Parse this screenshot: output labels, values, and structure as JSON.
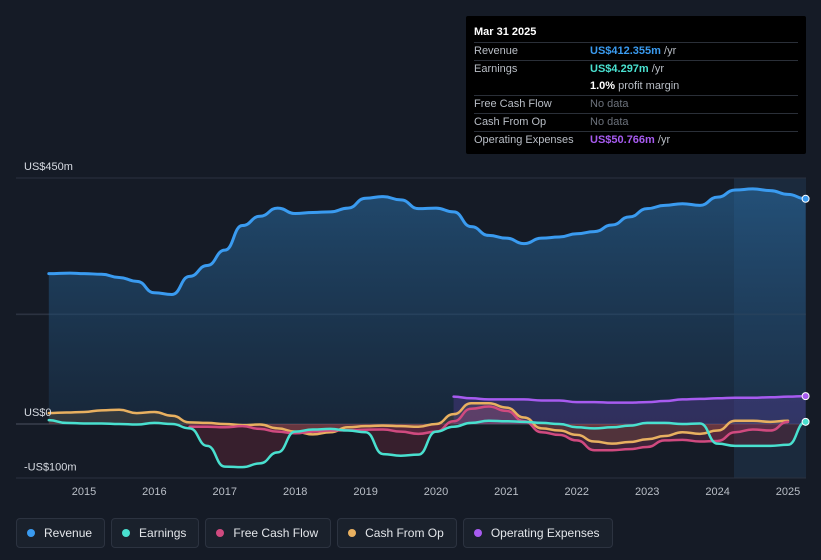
{
  "tooltip": {
    "date": "Mar 31 2025",
    "revenue_label": "Revenue",
    "revenue_value": "US$412.355m",
    "revenue_unit": "/yr",
    "earnings_label": "Earnings",
    "earnings_value": "US$4.297m",
    "earnings_unit": "/yr",
    "margin_value": "1.0%",
    "margin_label": "profit margin",
    "fcf_label": "Free Cash Flow",
    "fcf_value": "No data",
    "cfo_label": "Cash From Op",
    "cfo_value": "No data",
    "opex_label": "Operating Expenses",
    "opex_value": "US$50.766m",
    "opex_unit": "/yr"
  },
  "legend": [
    {
      "name": "Revenue",
      "color": "#3a9bf0"
    },
    {
      "name": "Earnings",
      "color": "#49e0cf"
    },
    {
      "name": "Free Cash Flow",
      "color": "#d04a7f"
    },
    {
      "name": "Cash From Op",
      "color": "#e8b060"
    },
    {
      "name": "Operating Expenses",
      "color": "#a75bf0"
    }
  ],
  "chart_data": {
    "type": "line",
    "title": "",
    "xlabel": "",
    "ylabel": "",
    "y_axis_labels": [
      "US$450m",
      "US$0",
      "-US$100m"
    ],
    "ylim": [
      -100,
      450
    ],
    "xlim": [
      2014.2,
      2025.25
    ],
    "x_ticks": [
      "2015",
      "2016",
      "2017",
      "2018",
      "2019",
      "2020",
      "2021",
      "2022",
      "2023",
      "2024",
      "2025"
    ],
    "series": [
      {
        "name": "Revenue",
        "color": "#3a9bf0",
        "x": [
          2014.5,
          2014.8,
          2015.0,
          2015.25,
          2015.5,
          2015.75,
          2016.0,
          2016.25,
          2016.5,
          2016.75,
          2017.0,
          2017.25,
          2017.5,
          2017.75,
          2018.0,
          2018.25,
          2018.5,
          2018.75,
          2019.0,
          2019.25,
          2019.5,
          2019.75,
          2020.0,
          2020.25,
          2020.5,
          2020.75,
          2021.0,
          2021.25,
          2021.5,
          2021.75,
          2022.0,
          2022.25,
          2022.5,
          2022.75,
          2023.0,
          2023.25,
          2023.5,
          2023.75,
          2024.0,
          2024.25,
          2024.5,
          2024.75,
          2025.0,
          2025.25
        ],
        "values": [
          275,
          276,
          275,
          274,
          268,
          261,
          240,
          237,
          270,
          290,
          318,
          363,
          380,
          395,
          385,
          387,
          388,
          395,
          413,
          416,
          410,
          394,
          395,
          388,
          361,
          345,
          340,
          330,
          340,
          342,
          348,
          352,
          364,
          379,
          394,
          400,
          403,
          400,
          415,
          428,
          430,
          427,
          420,
          412
        ]
      },
      {
        "name": "Earnings",
        "color": "#49e0cf",
        "x": [
          2014.5,
          2014.75,
          2015.0,
          2015.25,
          2015.5,
          2015.75,
          2016.0,
          2016.25,
          2016.5,
          2016.75,
          2017.0,
          2017.25,
          2017.5,
          2017.75,
          2018.0,
          2018.25,
          2018.5,
          2018.75,
          2019.0,
          2019.25,
          2019.5,
          2019.75,
          2020.0,
          2020.25,
          2020.5,
          2020.75,
          2021.0,
          2021.25,
          2021.5,
          2021.75,
          2022.0,
          2022.25,
          2022.5,
          2022.75,
          2023.0,
          2023.25,
          2023.5,
          2023.75,
          2024.0,
          2024.25,
          2024.5,
          2024.75,
          2025.0,
          2025.25
        ],
        "values": [
          7,
          2,
          1,
          1,
          0,
          -1,
          2,
          0,
          -8,
          -40,
          -78,
          -79,
          -72,
          -52,
          -14,
          -10,
          -9,
          -12,
          -15,
          -55,
          -58,
          -56,
          -14,
          -5,
          2,
          6,
          5,
          4,
          2,
          0,
          -6,
          -8,
          -6,
          -3,
          2,
          2,
          0,
          1,
          -36,
          -40,
          -40,
          -40,
          -38,
          4
        ]
      },
      {
        "name": "Free Cash Flow",
        "color": "#d04a7f",
        "x": [
          2016.5,
          2016.75,
          2017.0,
          2017.25,
          2017.5,
          2017.75,
          2018.0,
          2018.25,
          2018.5,
          2019.25,
          2019.5,
          2019.75,
          2020.0,
          2020.25,
          2020.5,
          2020.75,
          2021.0,
          2021.25,
          2021.5,
          2021.75,
          2022.0,
          2022.25,
          2022.5,
          2022.75,
          2023.0,
          2023.25,
          2023.5,
          2023.75,
          2024.0,
          2024.25,
          2024.5,
          2024.75,
          2025.0
        ],
        "values": [
          -5,
          -5,
          -6,
          -4,
          -9,
          -14,
          -17,
          -14,
          -12,
          -10,
          -14,
          -18,
          -14,
          5,
          28,
          32,
          24,
          5,
          -15,
          -20,
          -30,
          -48,
          -48,
          -46,
          -42,
          -30,
          -29,
          -32,
          -31,
          -15,
          -10,
          -12,
          4
        ]
      },
      {
        "name": "Cash From Op",
        "color": "#e8b060",
        "x": [
          2014.5,
          2014.75,
          2015.0,
          2015.25,
          2015.5,
          2015.75,
          2016.0,
          2016.25,
          2016.5,
          2016.75,
          2017.0,
          2017.25,
          2017.5,
          2017.75,
          2018.0,
          2018.25,
          2018.5,
          2018.75,
          2019.0,
          2019.25,
          2019.5,
          2019.75,
          2020.0,
          2020.25,
          2020.5,
          2020.75,
          2021.0,
          2021.25,
          2021.5,
          2021.75,
          2022.0,
          2022.25,
          2022.5,
          2022.75,
          2023.0,
          2023.25,
          2023.5,
          2023.75,
          2024.0,
          2024.25,
          2024.5,
          2024.75,
          2025.0
        ],
        "values": [
          20,
          21,
          22,
          25,
          26,
          20,
          22,
          15,
          3,
          2,
          0,
          -2,
          -1,
          -8,
          -14,
          -19,
          -15,
          -6,
          -4,
          -3,
          -4,
          -5,
          0,
          18,
          38,
          38,
          30,
          12,
          -8,
          -12,
          -20,
          -32,
          -36,
          -33,
          -28,
          -22,
          -15,
          -18,
          -12,
          6,
          6,
          4,
          6
        ]
      },
      {
        "name": "Operating Expenses",
        "color": "#a75bf0",
        "x": [
          2020.25,
          2020.5,
          2020.75,
          2021.0,
          2021.25,
          2021.5,
          2021.75,
          2022.0,
          2022.25,
          2022.5,
          2022.75,
          2023.0,
          2023.25,
          2023.5,
          2023.75,
          2024.0,
          2024.25,
          2024.5,
          2024.75,
          2025.0,
          2025.25
        ],
        "values": [
          50,
          47,
          45,
          45,
          45,
          43,
          43,
          40,
          40,
          39,
          39,
          40,
          42,
          45,
          46,
          47,
          48,
          48,
          49,
          50,
          51
        ]
      }
    ]
  }
}
